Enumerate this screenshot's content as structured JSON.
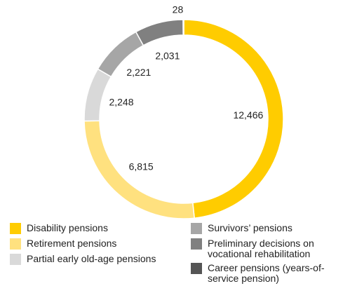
{
  "chart_data": {
    "type": "donut",
    "categories": [
      "Disability pensions",
      "Retirement pensions",
      "Partial early old-age pensions",
      "Survivors’ pensions",
      "Preliminary decisions on vocational rehabilitation",
      "Career pensions (years-of-service pension)"
    ],
    "values": [
      12466,
      6815,
      2248,
      2221,
      2031,
      28
    ],
    "value_labels": [
      "12,466",
      "6,815",
      "2,248",
      "2,221",
      "2,031",
      "28"
    ],
    "colors": [
      "#ffcc00",
      "#ffe17f",
      "#d9d9d9",
      "#a6a6a6",
      "#808080",
      "#555555"
    ]
  }
}
